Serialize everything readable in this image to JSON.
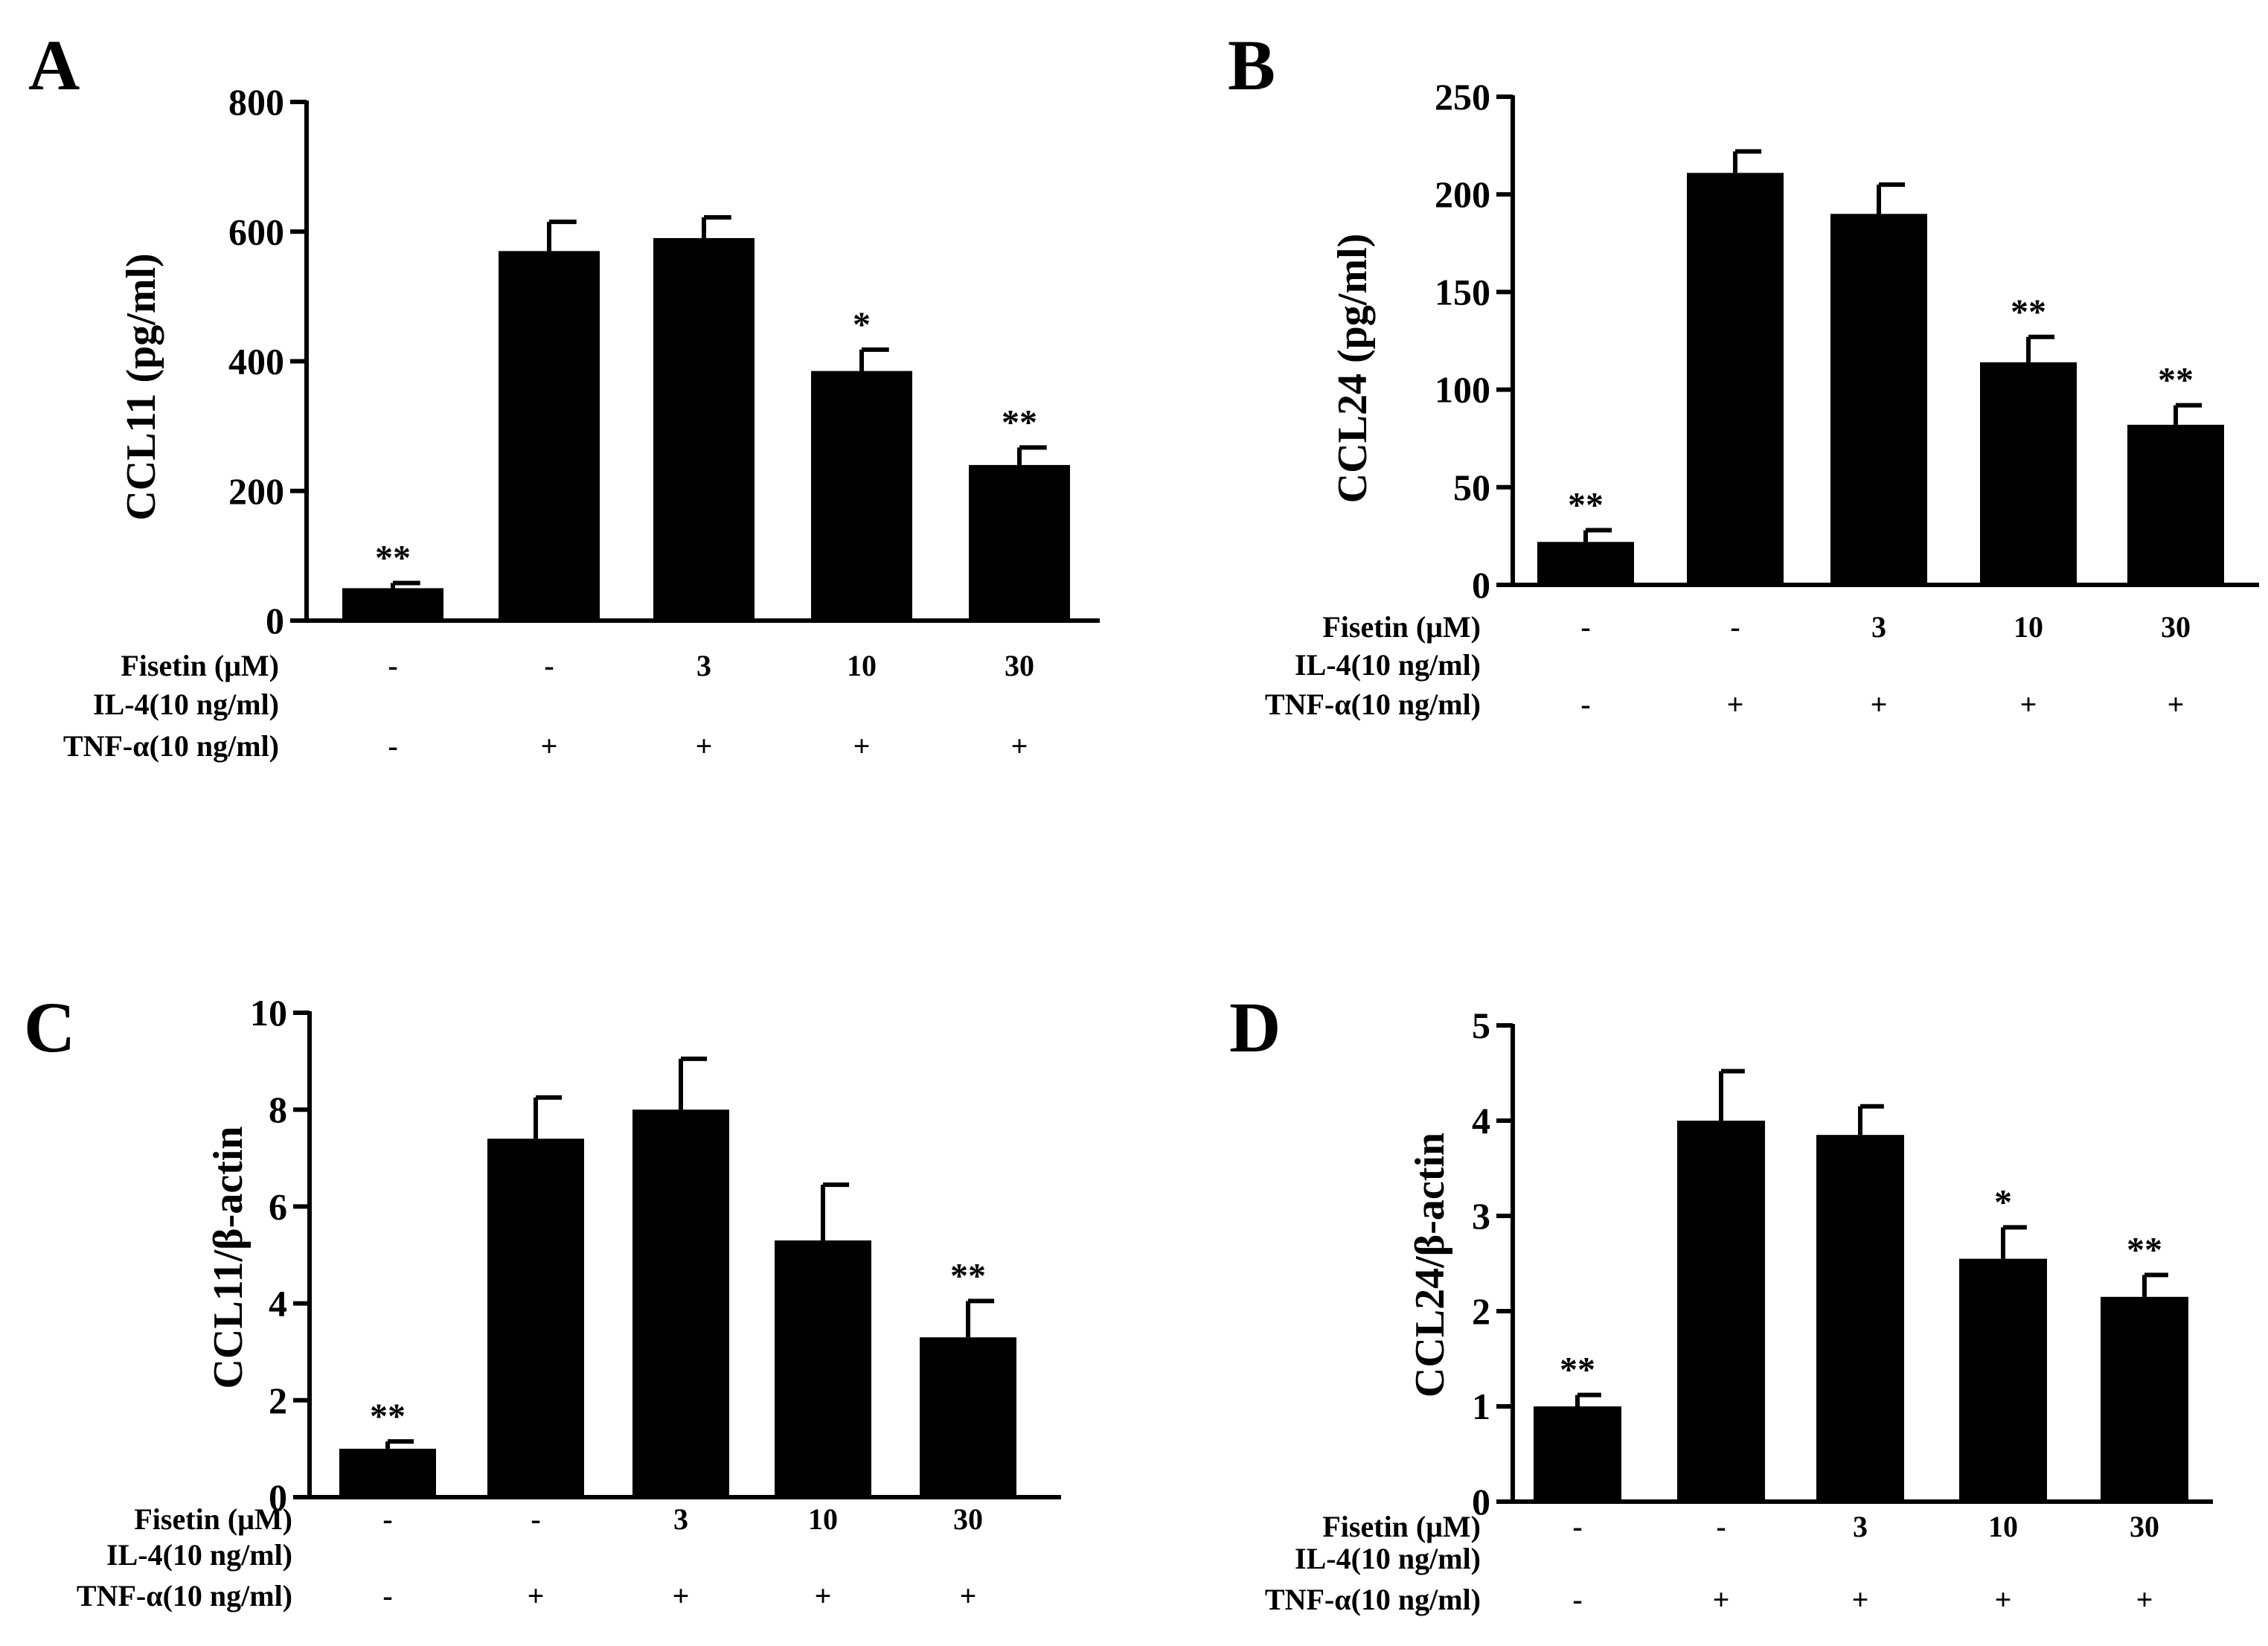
{
  "figure": {
    "conditions": {
      "fisetin_label": "Fisetin (μM)",
      "il4_label": "IL-4(10 ng/ml)",
      "tnf_label": "TNF-α(10 ng/ml)",
      "fisetin": [
        "-",
        "-",
        "3",
        "10",
        "30"
      ],
      "tnf": [
        "-",
        "+",
        "+",
        "+",
        "+"
      ]
    }
  },
  "chart_data": [
    {
      "id": "A",
      "type": "bar",
      "panel_label": "A",
      "ylabel": "CCL11 (pg/ml)",
      "ylim": [
        0,
        800
      ],
      "yticks": [
        0,
        200,
        400,
        600,
        800
      ],
      "values": [
        50,
        570,
        590,
        385,
        240
      ],
      "errors": [
        8,
        45,
        32,
        33,
        27
      ],
      "significance": [
        "**",
        "",
        "",
        "*",
        "**"
      ]
    },
    {
      "id": "B",
      "type": "bar",
      "panel_label": "B",
      "ylabel": "CCL24 (pg/ml)",
      "ylim": [
        0,
        250
      ],
      "yticks": [
        0,
        50,
        100,
        150,
        200,
        250
      ],
      "values": [
        22,
        211,
        190,
        114,
        82
      ],
      "errors": [
        6,
        11,
        15,
        13,
        10
      ],
      "significance": [
        "**",
        "",
        "",
        "**",
        "**"
      ]
    },
    {
      "id": "C",
      "type": "bar",
      "panel_label": "C",
      "ylabel": "CCL11/β-actin",
      "ylim": [
        0,
        10
      ],
      "yticks": [
        0,
        2,
        4,
        6,
        8,
        10
      ],
      "values": [
        1.0,
        7.4,
        8.0,
        5.3,
        3.3
      ],
      "errors": [
        0.15,
        0.85,
        1.05,
        1.15,
        0.75
      ],
      "significance": [
        "**",
        "",
        "",
        "",
        "**"
      ]
    },
    {
      "id": "D",
      "type": "bar",
      "panel_label": "D",
      "ylabel": "CCL24/β-actin",
      "ylim": [
        0,
        5
      ],
      "yticks": [
        0,
        1,
        2,
        3,
        4,
        5
      ],
      "values": [
        1.0,
        4.0,
        3.85,
        2.55,
        2.15
      ],
      "errors": [
        0.12,
        0.52,
        0.3,
        0.33,
        0.23
      ],
      "significance": [
        "**",
        "",
        "",
        "*",
        "**"
      ]
    }
  ]
}
